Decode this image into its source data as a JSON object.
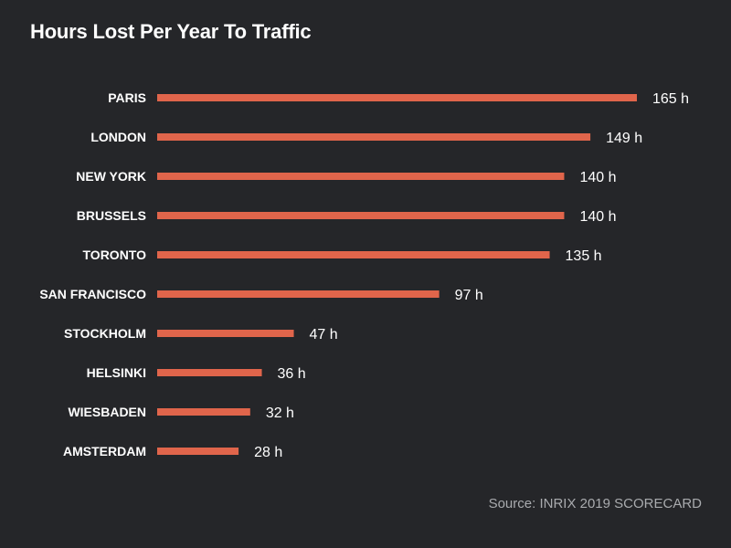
{
  "title": "Hours Lost Per Year To Traffic",
  "source": "Source: INRIX 2019 SCORECARD",
  "colors": {
    "background": "#252629",
    "bar": "#e0654b",
    "title": "#ffffff",
    "label": "#ffffff",
    "source": "#a9abae"
  },
  "chart_data": {
    "type": "bar",
    "orientation": "horizontal",
    "title": "Hours Lost Per Year To Traffic",
    "categories": [
      "PARIS",
      "LONDON",
      "NEW YORK",
      "BRUSSELS",
      "TORONTO",
      "SAN FRANCISCO",
      "STOCKHOLM",
      "HELSINKI",
      "WIESBADEN",
      "AMSTERDAM"
    ],
    "values": [
      165,
      149,
      140,
      140,
      135,
      97,
      47,
      36,
      32,
      28
    ],
    "data_labels": [
      "165 h",
      "149 h",
      "140 h",
      "140 h",
      "135 h",
      "97 h",
      "47 h",
      "36 h",
      "32 h",
      "28 h"
    ],
    "unit": "h",
    "xlim": [
      0,
      165
    ],
    "grid": false,
    "legend": "none",
    "xlabel": "",
    "ylabel": ""
  }
}
